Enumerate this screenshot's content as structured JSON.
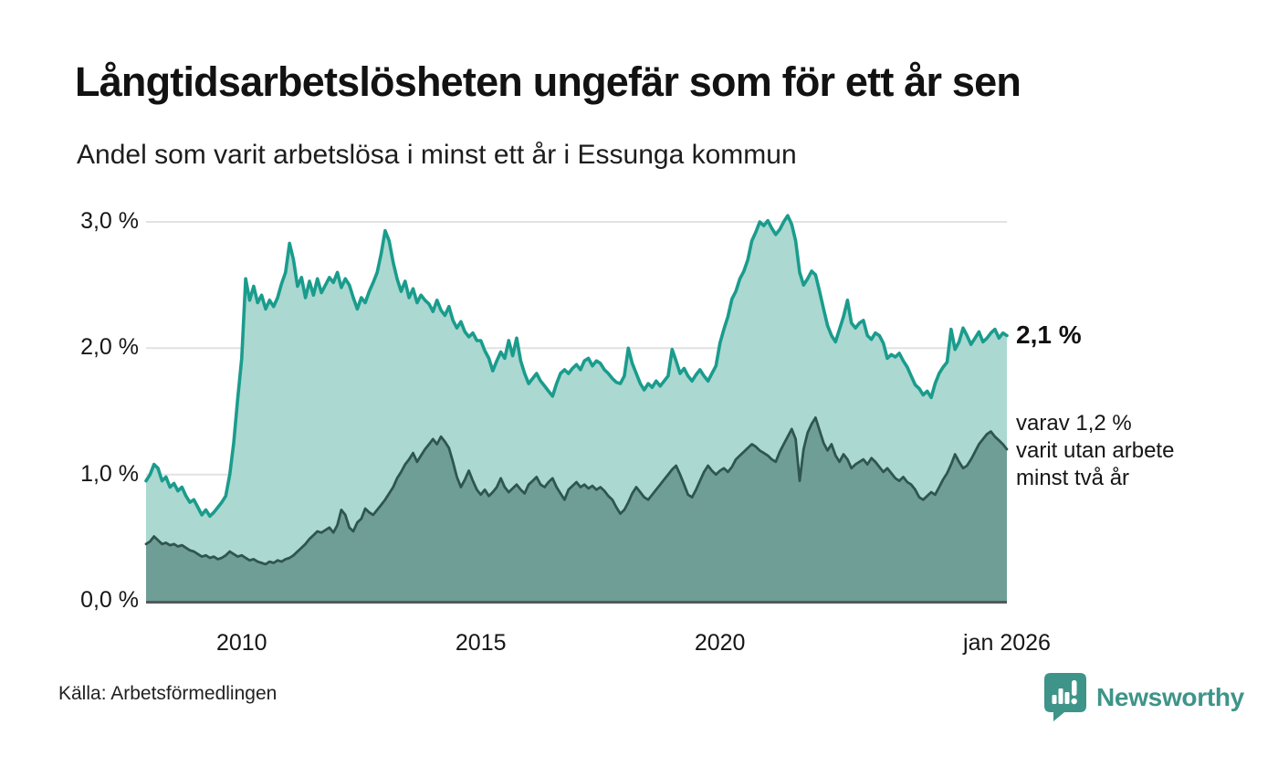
{
  "page": {
    "source": "Källa: Arbetsförmedlingen",
    "branding": {
      "name": "Newsworthy",
      "icon": "newsworthy-speech-bubble-bar-chart-icon"
    }
  },
  "colors": {
    "line_total": "#1a9c8d",
    "fill_total": "#abd8d0",
    "line_two_years": "#2e564f",
    "fill_two_years": "#6f9e97",
    "gridline": "#e2e2e2",
    "axis": "#54585a",
    "brand_teal": "#3e9488",
    "text_dark": "#161616"
  },
  "chart_data": {
    "type": "area",
    "title": "Långtidsarbetslösheten ungefär som för ett år sen",
    "subtitle": "Andel som varit arbetslösa i minst ett år i Essunga kommun",
    "unit": "%",
    "frequency": "monthly",
    "x_start_year": 2008,
    "x_end_year": 2026,
    "ylim": [
      0,
      3.1
    ],
    "grid": "horizontal-only",
    "legend_position": "end-of-line-labels",
    "x_ticks": [
      {
        "label": "2010",
        "year": 2010
      },
      {
        "label": "2015",
        "year": 2015
      },
      {
        "label": "2020",
        "year": 2020
      },
      {
        "label": "jan 2026",
        "year": 2026
      }
    ],
    "y_ticks": [
      {
        "label": "0,0 %",
        "value": 0
      },
      {
        "label": "1,0 %",
        "value": 1
      },
      {
        "label": "2,0 %",
        "value": 2
      },
      {
        "label": "3,0 %",
        "value": 3
      }
    ],
    "series": [
      {
        "name": "Andel arbetslösa minst ett år",
        "end_label": "2,1 %",
        "end_value": 2.1,
        "values": [
          0.95,
          1.0,
          1.08,
          1.05,
          0.95,
          0.98,
          0.9,
          0.93,
          0.87,
          0.9,
          0.83,
          0.78,
          0.8,
          0.74,
          0.68,
          0.72,
          0.67,
          0.7,
          0.74,
          0.78,
          0.83,
          1.0,
          1.25,
          1.6,
          1.92,
          2.55,
          2.38,
          2.49,
          2.36,
          2.42,
          2.31,
          2.38,
          2.33,
          2.4,
          2.51,
          2.6,
          2.83,
          2.7,
          2.49,
          2.56,
          2.4,
          2.53,
          2.42,
          2.55,
          2.44,
          2.5,
          2.56,
          2.52,
          2.6,
          2.48,
          2.55,
          2.5,
          2.4,
          2.31,
          2.4,
          2.36,
          2.45,
          2.52,
          2.6,
          2.75,
          2.93,
          2.85,
          2.68,
          2.55,
          2.45,
          2.53,
          2.4,
          2.47,
          2.36,
          2.42,
          2.38,
          2.35,
          2.29,
          2.38,
          2.3,
          2.26,
          2.33,
          2.22,
          2.16,
          2.21,
          2.13,
          2.09,
          2.12,
          2.06,
          2.06,
          1.98,
          1.92,
          1.82,
          1.9,
          1.97,
          1.92,
          2.06,
          1.94,
          2.08,
          1.9,
          1.8,
          1.72,
          1.76,
          1.8,
          1.74,
          1.7,
          1.66,
          1.62,
          1.72,
          1.8,
          1.83,
          1.8,
          1.84,
          1.87,
          1.83,
          1.9,
          1.92,
          1.86,
          1.9,
          1.88,
          1.83,
          1.8,
          1.76,
          1.73,
          1.72,
          1.78,
          2.0,
          1.88,
          1.8,
          1.72,
          1.67,
          1.72,
          1.69,
          1.74,
          1.7,
          1.74,
          1.78,
          1.99,
          1.9,
          1.8,
          1.84,
          1.78,
          1.74,
          1.79,
          1.83,
          1.78,
          1.74,
          1.8,
          1.86,
          2.04,
          2.15,
          2.25,
          2.39,
          2.45,
          2.55,
          2.61,
          2.7,
          2.85,
          2.92,
          3.0,
          2.97,
          3.01,
          2.95,
          2.9,
          2.94,
          3.0,
          3.05,
          2.98,
          2.85,
          2.6,
          2.5,
          2.55,
          2.61,
          2.58,
          2.45,
          2.31,
          2.18,
          2.1,
          2.05,
          2.15,
          2.25,
          2.38,
          2.2,
          2.16,
          2.2,
          2.22,
          2.1,
          2.07,
          2.12,
          2.1,
          2.04,
          1.92,
          1.95,
          1.93,
          1.96,
          1.9,
          1.85,
          1.78,
          1.71,
          1.68,
          1.63,
          1.66,
          1.61,
          1.72,
          1.8,
          1.85,
          1.89,
          2.15,
          1.99,
          2.05,
          2.16,
          2.1,
          2.03,
          2.08,
          2.13,
          2.05,
          2.08,
          2.12,
          2.15,
          2.08,
          2.12,
          2.1
        ]
      },
      {
        "name": "Varav arbetslösa minst två år",
        "end_label_lines": [
          "varav 1,2 %",
          "varit utan arbete",
          "minst två år"
        ],
        "end_value": 1.2,
        "values": [
          0.45,
          0.47,
          0.51,
          0.48,
          0.45,
          0.46,
          0.44,
          0.45,
          0.43,
          0.44,
          0.42,
          0.4,
          0.39,
          0.37,
          0.35,
          0.36,
          0.34,
          0.35,
          0.33,
          0.34,
          0.36,
          0.39,
          0.37,
          0.35,
          0.36,
          0.34,
          0.32,
          0.33,
          0.31,
          0.3,
          0.29,
          0.31,
          0.3,
          0.32,
          0.31,
          0.33,
          0.34,
          0.36,
          0.39,
          0.42,
          0.45,
          0.49,
          0.52,
          0.55,
          0.54,
          0.56,
          0.58,
          0.54,
          0.6,
          0.72,
          0.68,
          0.58,
          0.55,
          0.62,
          0.65,
          0.73,
          0.7,
          0.68,
          0.72,
          0.76,
          0.8,
          0.85,
          0.9,
          0.97,
          1.02,
          1.08,
          1.12,
          1.17,
          1.1,
          1.15,
          1.2,
          1.24,
          1.28,
          1.24,
          1.3,
          1.26,
          1.21,
          1.1,
          0.98,
          0.9,
          0.96,
          1.03,
          0.95,
          0.88,
          0.84,
          0.88,
          0.83,
          0.86,
          0.9,
          0.97,
          0.9,
          0.86,
          0.89,
          0.92,
          0.88,
          0.85,
          0.92,
          0.95,
          0.98,
          0.92,
          0.9,
          0.94,
          0.97,
          0.9,
          0.85,
          0.8,
          0.88,
          0.91,
          0.94,
          0.9,
          0.92,
          0.89,
          0.91,
          0.88,
          0.9,
          0.87,
          0.83,
          0.8,
          0.74,
          0.69,
          0.72,
          0.78,
          0.85,
          0.9,
          0.86,
          0.82,
          0.8,
          0.84,
          0.88,
          0.92,
          0.96,
          1.0,
          1.04,
          1.07,
          1.0,
          0.92,
          0.84,
          0.82,
          0.88,
          0.95,
          1.02,
          1.07,
          1.03,
          1.0,
          1.03,
          1.05,
          1.02,
          1.06,
          1.12,
          1.15,
          1.18,
          1.21,
          1.24,
          1.22,
          1.19,
          1.17,
          1.15,
          1.12,
          1.1,
          1.18,
          1.24,
          1.3,
          1.36,
          1.28,
          0.95,
          1.2,
          1.33,
          1.4,
          1.45,
          1.35,
          1.25,
          1.19,
          1.24,
          1.15,
          1.1,
          1.16,
          1.12,
          1.05,
          1.08,
          1.1,
          1.12,
          1.08,
          1.13,
          1.1,
          1.06,
          1.02,
          1.05,
          1.01,
          0.97,
          0.95,
          0.98,
          0.94,
          0.92,
          0.88,
          0.82,
          0.8,
          0.83,
          0.86,
          0.84,
          0.9,
          0.96,
          1.01,
          1.08,
          1.16,
          1.1,
          1.05,
          1.07,
          1.12,
          1.18,
          1.24,
          1.28,
          1.32,
          1.34,
          1.3,
          1.27,
          1.24,
          1.2
        ]
      }
    ]
  }
}
